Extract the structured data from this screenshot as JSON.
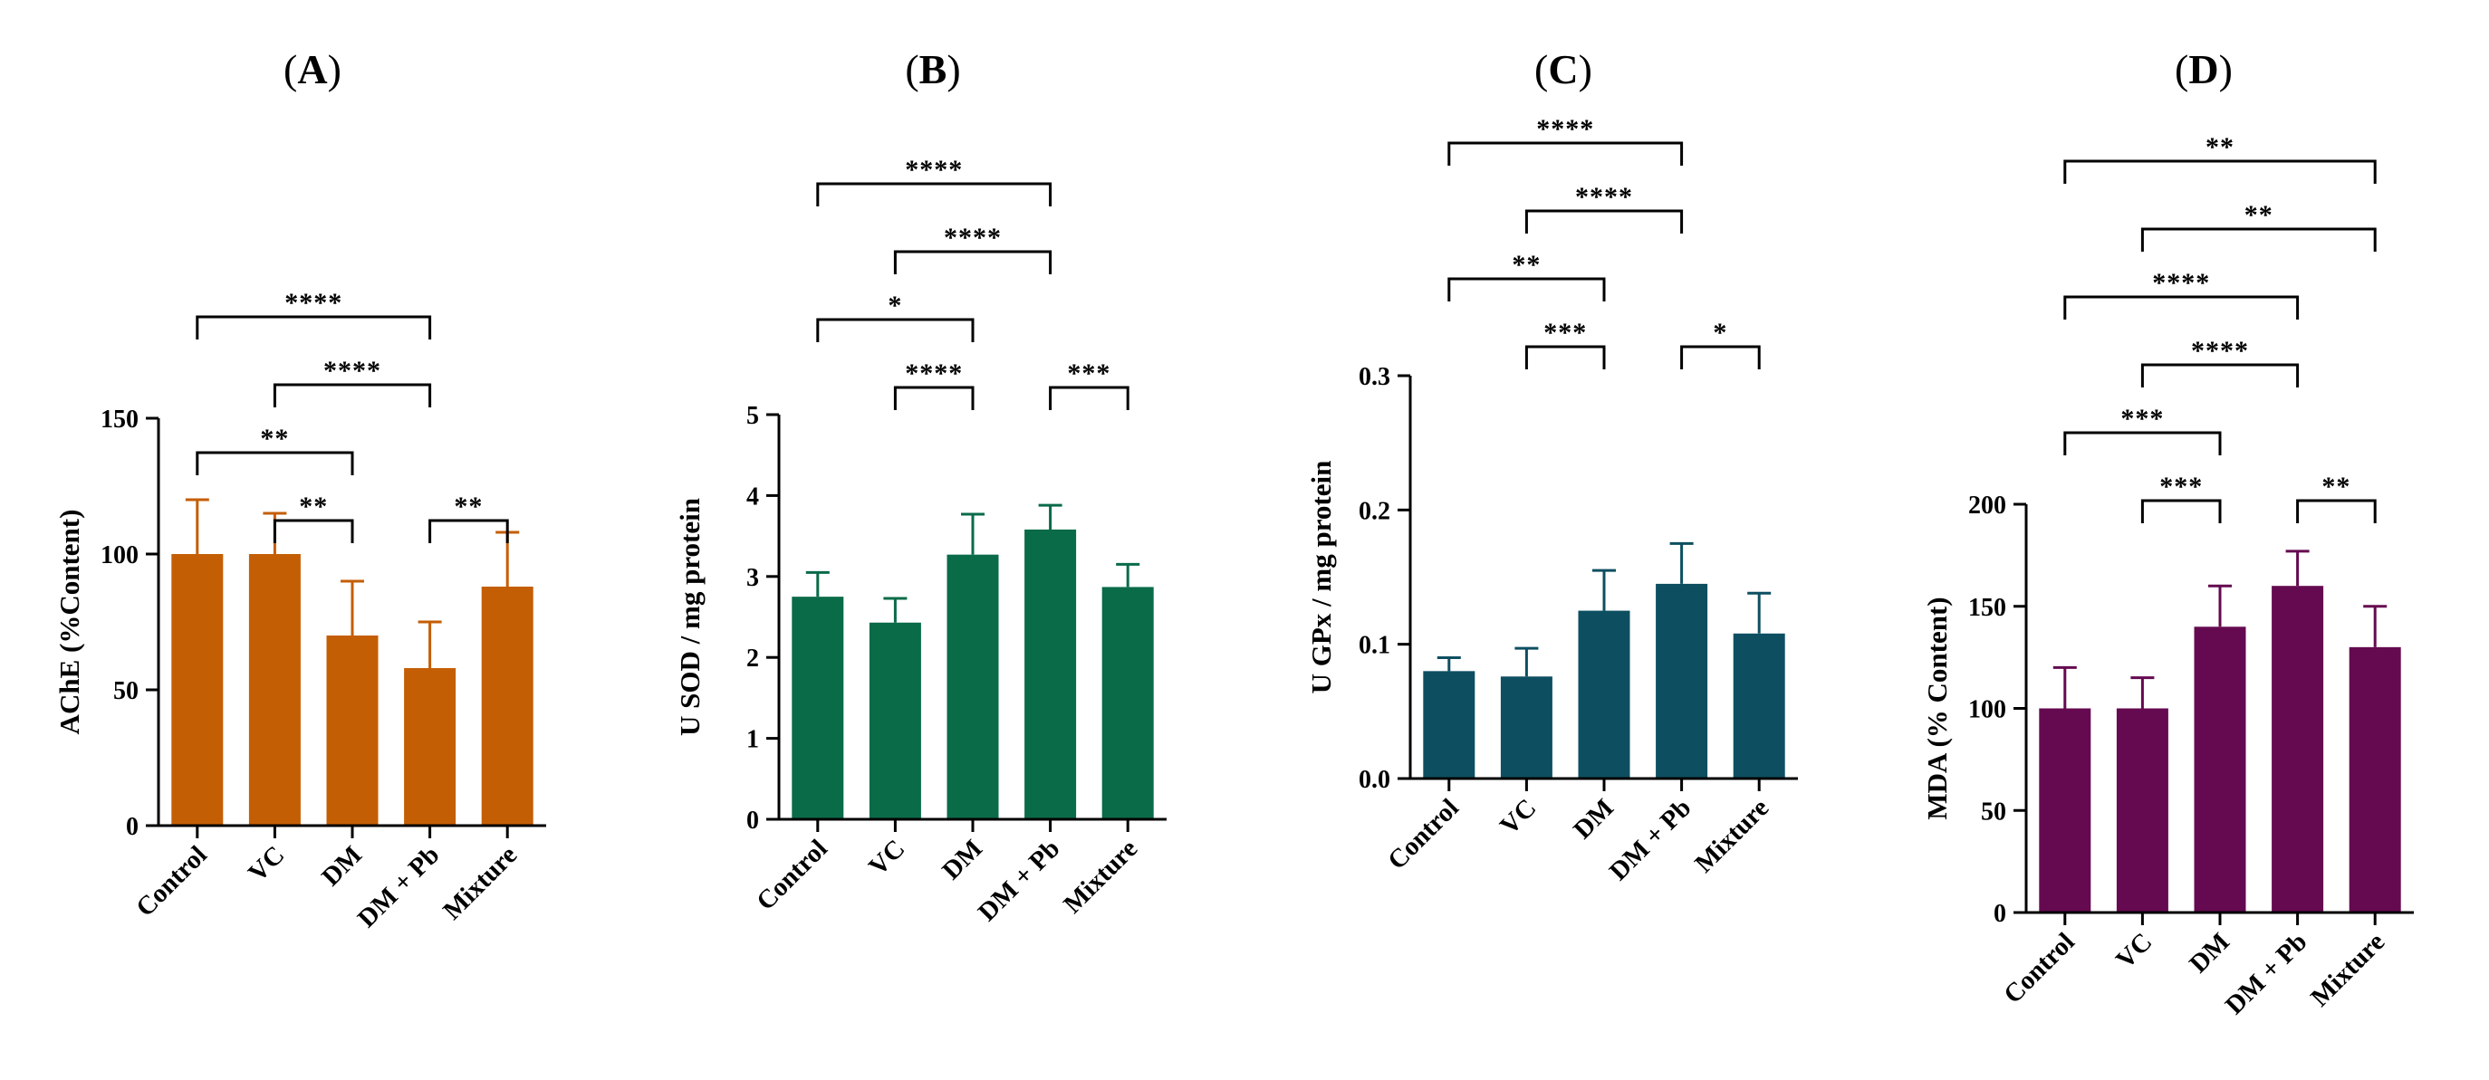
{
  "chart_data": [
    {
      "panel": "(A)",
      "panel_letter": "A",
      "type": "bar",
      "ylabel": "AChE (%Content)",
      "ylim": [
        0,
        150
      ],
      "yticks": [
        0,
        50,
        100,
        150
      ],
      "categories": [
        "Control",
        "VC",
        "DM",
        "DM + Pb",
        "Mixture"
      ],
      "values": [
        100,
        100,
        70,
        58,
        88
      ],
      "errors": [
        20,
        15,
        20,
        17,
        20
      ],
      "color": "#c45e05",
      "significance": [
        {
          "from": 0,
          "to": 3,
          "label": "****"
        },
        {
          "from": 1,
          "to": 3,
          "label": "****"
        },
        {
          "from": 0,
          "to": 2,
          "label": "**"
        },
        {
          "from": 1,
          "to": 2,
          "label": "**"
        },
        {
          "from": 3,
          "to": 4,
          "label": "**"
        }
      ]
    },
    {
      "panel": "(B)",
      "panel_letter": "B",
      "type": "bar",
      "ylabel": "U SOD / mg protein",
      "ylim": [
        0,
        5
      ],
      "yticks": [
        0,
        1,
        2,
        3,
        4,
        5
      ],
      "categories": [
        "Control",
        "VC",
        "DM",
        "DM + Pb",
        "Mixture"
      ],
      "values": [
        2.75,
        2.43,
        3.27,
        3.58,
        2.87
      ],
      "errors": [
        0.3,
        0.3,
        0.5,
        0.3,
        0.28
      ],
      "color": "#0a6b48",
      "significance": [
        {
          "from": 0,
          "to": 3,
          "label": "****"
        },
        {
          "from": 1,
          "to": 3,
          "label": "****"
        },
        {
          "from": 0,
          "to": 2,
          "label": "*"
        },
        {
          "from": 1,
          "to": 2,
          "label": "****"
        },
        {
          "from": 3,
          "to": 4,
          "label": "***"
        }
      ]
    },
    {
      "panel": "(C)",
      "panel_letter": "C",
      "type": "bar",
      "ylabel": "U GPx / mg protein",
      "ylim": [
        0,
        0.3
      ],
      "yticks": [
        0.0,
        0.1,
        0.2,
        0.3
      ],
      "ytick_labels": [
        "0.0",
        "0.1",
        "0.2",
        "0.3"
      ],
      "categories": [
        "Control",
        "VC",
        "DM",
        "DM + Pb",
        "Mixture"
      ],
      "values": [
        0.08,
        0.076,
        0.125,
        0.145,
        0.108
      ],
      "errors": [
        0.01,
        0.021,
        0.03,
        0.03,
        0.03
      ],
      "color": "#0d4f61",
      "significance": [
        {
          "from": 0,
          "to": 3,
          "label": "****"
        },
        {
          "from": 1,
          "to": 3,
          "label": "****"
        },
        {
          "from": 0,
          "to": 2,
          "label": "**"
        },
        {
          "from": 1,
          "to": 2,
          "label": "***"
        },
        {
          "from": 3,
          "to": 4,
          "label": "*"
        }
      ]
    },
    {
      "panel": "(D)",
      "panel_letter": "D",
      "type": "bar",
      "ylabel": "MDA (% Content)",
      "ylim": [
        0,
        200
      ],
      "yticks": [
        0,
        50,
        100,
        150,
        200
      ],
      "categories": [
        "Control",
        "VC",
        "DM",
        "DM + Pb",
        "Mixture"
      ],
      "values": [
        100,
        100,
        140,
        160,
        130
      ],
      "errors": [
        20,
        15,
        20,
        17,
        20
      ],
      "color": "#650a50",
      "significance": [
        {
          "from": 0,
          "to": 4,
          "label": "**"
        },
        {
          "from": 1,
          "to": 4,
          "label": "**"
        },
        {
          "from": 0,
          "to": 3,
          "label": "****"
        },
        {
          "from": 1,
          "to": 3,
          "label": "****"
        },
        {
          "from": 0,
          "to": 2,
          "label": "***"
        },
        {
          "from": 1,
          "to": 2,
          "label": "***"
        },
        {
          "from": 3,
          "to": 4,
          "label": "**"
        }
      ]
    }
  ]
}
